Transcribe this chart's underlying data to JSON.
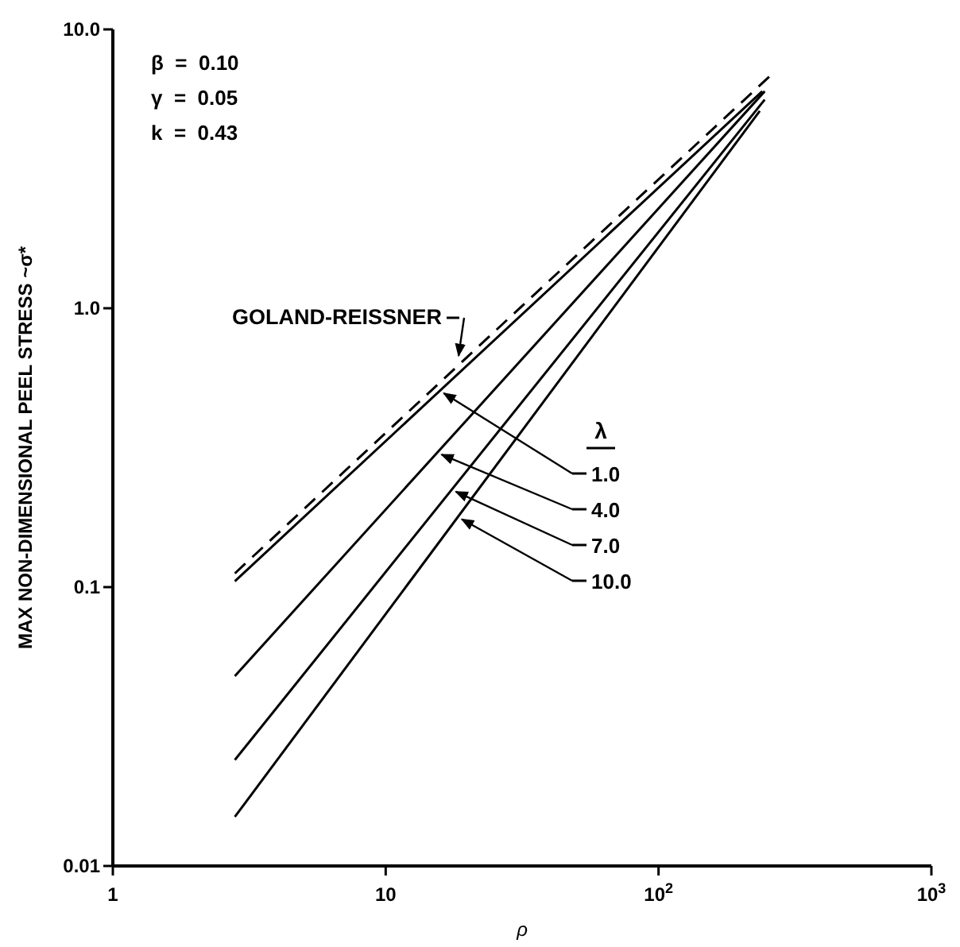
{
  "chart_data": {
    "type": "line",
    "ylabel": "MAX NON-DIMENSIONAL PEEL STRESS ~σ*",
    "xlabel": "ρ",
    "legend_title": "λ",
    "log": "xy",
    "grid": false,
    "legend": "right",
    "xlim": [
      1,
      1000
    ],
    "ylim": [
      0.01,
      10
    ],
    "xticks": [
      1,
      10,
      {
        "value": 100,
        "label": "10$^{2}$"
      },
      {
        "value": 1000,
        "label": "10$^{3}$"
      }
    ],
    "yticks": [
      {
        "value": 0.01,
        "label": "0.01"
      },
      {
        "value": 0.1,
        "label": "0.1"
      },
      {
        "value": 1,
        "label": "1.0"
      },
      {
        "value": 10,
        "label": "10.0"
      }
    ],
    "annotations": [
      "β  =  0.10",
      "γ  =  0.05",
      "k  =  0.43"
    ],
    "series": [
      {
        "name": "GOLAND-REISSNER",
        "color": "#000000",
        "line_style": "dashed",
        "x": [
          2.8,
          33,
          260
        ],
        "values": [
          0.112,
          1.06,
          6.9
        ]
      },
      {
        "name": "1.0",
        "color": "#000000",
        "line_style": "solid",
        "x": [
          2.8,
          240
        ],
        "values": [
          0.105,
          6.0
        ]
      },
      {
        "name": "4.0",
        "color": "#000000",
        "line_style": "solid",
        "x": [
          2.8,
          245
        ],
        "values": [
          0.048,
          6.0
        ]
      },
      {
        "name": "7.0",
        "color": "#000000",
        "line_style": "solid",
        "x": [
          2.8,
          245
        ],
        "values": [
          0.024,
          5.6
        ]
      },
      {
        "name": "10.0",
        "color": "#000000",
        "line_style": "solid",
        "x": [
          2.8,
          235
        ],
        "values": [
          0.015,
          5.1
        ]
      }
    ]
  }
}
